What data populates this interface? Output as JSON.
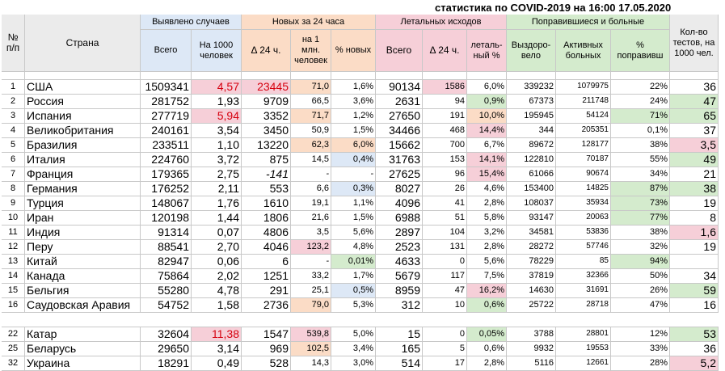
{
  "title": "статистика по COVID-2019 на 16:00 17.05.2020",
  "headers": {
    "num": "№ п/п",
    "country": "Страна",
    "detected": "Выявлено случаев",
    "detected_total": "Всего",
    "detected_per1000": "На 1000 человек",
    "new24": "Новых за 24 часа",
    "new_delta": "Δ 24 ч.",
    "new_per_mln": "на 1 млн. человек",
    "new_pct": "% новых",
    "deaths": "Летальных исходов",
    "deaths_total": "Всего",
    "deaths_delta": "Δ 24 ч.",
    "lethal_pct": "леталь-ный %",
    "recovered_sick": "Поправившиеся и больные",
    "recovered": "Выздоро-вело",
    "active": "Активных больных",
    "recovered_pct": "% поправивш",
    "tests": "Кол-во тестов, на 1000 чел."
  },
  "colors": {
    "highlight_red": "#d6000f",
    "pink_cell": "#f6cfd8",
    "green_cell": "#d4ebcd",
    "orange_cell": "#fbdcc6",
    "blue_cell": "#dde8f6"
  },
  "rows": [
    {
      "n": "1",
      "country": "США",
      "total": "1509341",
      "per1000": "4,57",
      "new": "23445",
      "newpm": "71,0",
      "newpct": "1,6%",
      "deaths": "90134",
      "ddelta": "1586",
      "lethal": "6,0%",
      "recovered": "339232",
      "active": "1079975",
      "recpct": "22%",
      "tests": "36"
    },
    {
      "n": "2",
      "country": "Россия",
      "total": "281752",
      "per1000": "1,93",
      "new": "9709",
      "newpm": "66,5",
      "newpct": "3,6%",
      "deaths": "2631",
      "ddelta": "94",
      "lethal": "0,9%",
      "recovered": "67373",
      "active": "211748",
      "recpct": "24%",
      "tests": "47"
    },
    {
      "n": "3",
      "country": "Испания",
      "total": "277719",
      "per1000": "5,94",
      "new": "3352",
      "newpm": "71,7",
      "newpct": "1,2%",
      "deaths": "27650",
      "ddelta": "191",
      "lethal": "10,0%",
      "recovered": "195945",
      "active": "54124",
      "recpct": "71%",
      "tests": "65"
    },
    {
      "n": "4",
      "country": "Великобритания",
      "total": "240161",
      "per1000": "3,54",
      "new": "3450",
      "newpm": "50,9",
      "newpct": "1,5%",
      "deaths": "34466",
      "ddelta": "468",
      "lethal": "14,4%",
      "recovered": "344",
      "active": "205351",
      "recpct": "0,1%",
      "tests": "37"
    },
    {
      "n": "5",
      "country": "Бразилия",
      "total": "233511",
      "per1000": "1,10",
      "new": "13220",
      "newpm": "62,3",
      "newpct": "6,0%",
      "deaths": "15662",
      "ddelta": "700",
      "lethal": "6,7%",
      "recovered": "89672",
      "active": "128177",
      "recpct": "38%",
      "tests": "3,5"
    },
    {
      "n": "6",
      "country": "Италия",
      "total": "224760",
      "per1000": "3,72",
      "new": "875",
      "newpm": "14,5",
      "newpct": "0,4%",
      "deaths": "31763",
      "ddelta": "153",
      "lethal": "14,1%",
      "recovered": "122810",
      "active": "70187",
      "recpct": "55%",
      "tests": "49"
    },
    {
      "n": "7",
      "country": "Франция",
      "total": "179365",
      "per1000": "2,75",
      "new": "-141",
      "newpm": "-",
      "newpct": "-",
      "deaths": "27625",
      "ddelta": "96",
      "lethal": "15,4%",
      "recovered": "61066",
      "active": "90674",
      "recpct": "34%",
      "tests": "21"
    },
    {
      "n": "8",
      "country": "Германия",
      "total": "176252",
      "per1000": "2,11",
      "new": "553",
      "newpm": "6,6",
      "newpct": "0,3%",
      "deaths": "8027",
      "ddelta": "26",
      "lethal": "4,6%",
      "recovered": "153400",
      "active": "14825",
      "recpct": "87%",
      "tests": "38"
    },
    {
      "n": "9",
      "country": "Турция",
      "total": "148067",
      "per1000": "1,76",
      "new": "1610",
      "newpm": "19,1",
      "newpct": "1,1%",
      "deaths": "4096",
      "ddelta": "41",
      "lethal": "2,8%",
      "recovered": "108037",
      "active": "35934",
      "recpct": "73%",
      "tests": "19"
    },
    {
      "n": "10",
      "country": "Иран",
      "total": "120198",
      "per1000": "1,44",
      "new": "1806",
      "newpm": "21,6",
      "newpct": "1,5%",
      "deaths": "6988",
      "ddelta": "51",
      "lethal": "5,8%",
      "recovered": "93147",
      "active": "20063",
      "recpct": "77%",
      "tests": "8"
    },
    {
      "n": "11",
      "country": "Индия",
      "total": "91314",
      "per1000": "0,07",
      "new": "4806",
      "newpm": "3,5",
      "newpct": "5,6%",
      "deaths": "2897",
      "ddelta": "104",
      "lethal": "3,2%",
      "recovered": "34581",
      "active": "53836",
      "recpct": "38%",
      "tests": "1,6"
    },
    {
      "n": "12",
      "country": "Перу",
      "total": "88541",
      "per1000": "2,70",
      "new": "4046",
      "newpm": "123,2",
      "newpct": "4,8%",
      "deaths": "2523",
      "ddelta": "131",
      "lethal": "2,8%",
      "recovered": "28272",
      "active": "57746",
      "recpct": "32%",
      "tests": "19"
    },
    {
      "n": "13",
      "country": "Китай",
      "total": "82947",
      "per1000": "0,06",
      "new": "6",
      "newpm": "-",
      "newpct": "0,01%",
      "deaths": "4633",
      "ddelta": "0",
      "lethal": "5,6%",
      "recovered": "78229",
      "active": "85",
      "recpct": "94%",
      "tests": ""
    },
    {
      "n": "14",
      "country": "Канада",
      "total": "75864",
      "per1000": "2,02",
      "new": "1251",
      "newpm": "33,2",
      "newpct": "1,7%",
      "deaths": "5679",
      "ddelta": "117",
      "lethal": "7,5%",
      "recovered": "37819",
      "active": "32366",
      "recpct": "50%",
      "tests": "34"
    },
    {
      "n": "15",
      "country": "Бельгия",
      "total": "55280",
      "per1000": "4,78",
      "new": "291",
      "newpm": "25,1",
      "newpct": "0,5%",
      "deaths": "8959",
      "ddelta": "47",
      "lethal": "16,2%",
      "recovered": "14630",
      "active": "31691",
      "recpct": "26%",
      "tests": "59"
    },
    {
      "n": "16",
      "country": "Саудовская Аравия",
      "total": "54752",
      "per1000": "1,58",
      "new": "2736",
      "newpm": "79,0",
      "newpct": "5,3%",
      "deaths": "312",
      "ddelta": "10",
      "lethal": "0,6%",
      "recovered": "25722",
      "active": "28718",
      "recpct": "47%",
      "tests": "16"
    }
  ],
  "rows_bottom": [
    {
      "n": "22",
      "country": "Катар",
      "total": "32604",
      "per1000": "11,38",
      "new": "1547",
      "newpm": "539,8",
      "newpct": "5,0%",
      "deaths": "15",
      "ddelta": "0",
      "lethal": "0,05%",
      "recovered": "3788",
      "active": "28801",
      "recpct": "12%",
      "tests": "53"
    },
    {
      "n": "25",
      "country": "Беларусь",
      "total": "29650",
      "per1000": "3,14",
      "new": "969",
      "newpm": "102,5",
      "newpct": "3,4%",
      "deaths": "165",
      "ddelta": "5",
      "lethal": "0,6%",
      "recovered": "9932",
      "active": "19553",
      "recpct": "33%",
      "tests": "36"
    },
    {
      "n": "32",
      "country": "Украина",
      "total": "18291",
      "per1000": "0,49",
      "new": "528",
      "newpm": "14,3",
      "newpct": "3,0%",
      "deaths": "514",
      "ddelta": "17",
      "lethal": "2,8%",
      "recovered": "5116",
      "active": "12661",
      "recpct": "28%",
      "tests": "5,2"
    }
  ]
}
